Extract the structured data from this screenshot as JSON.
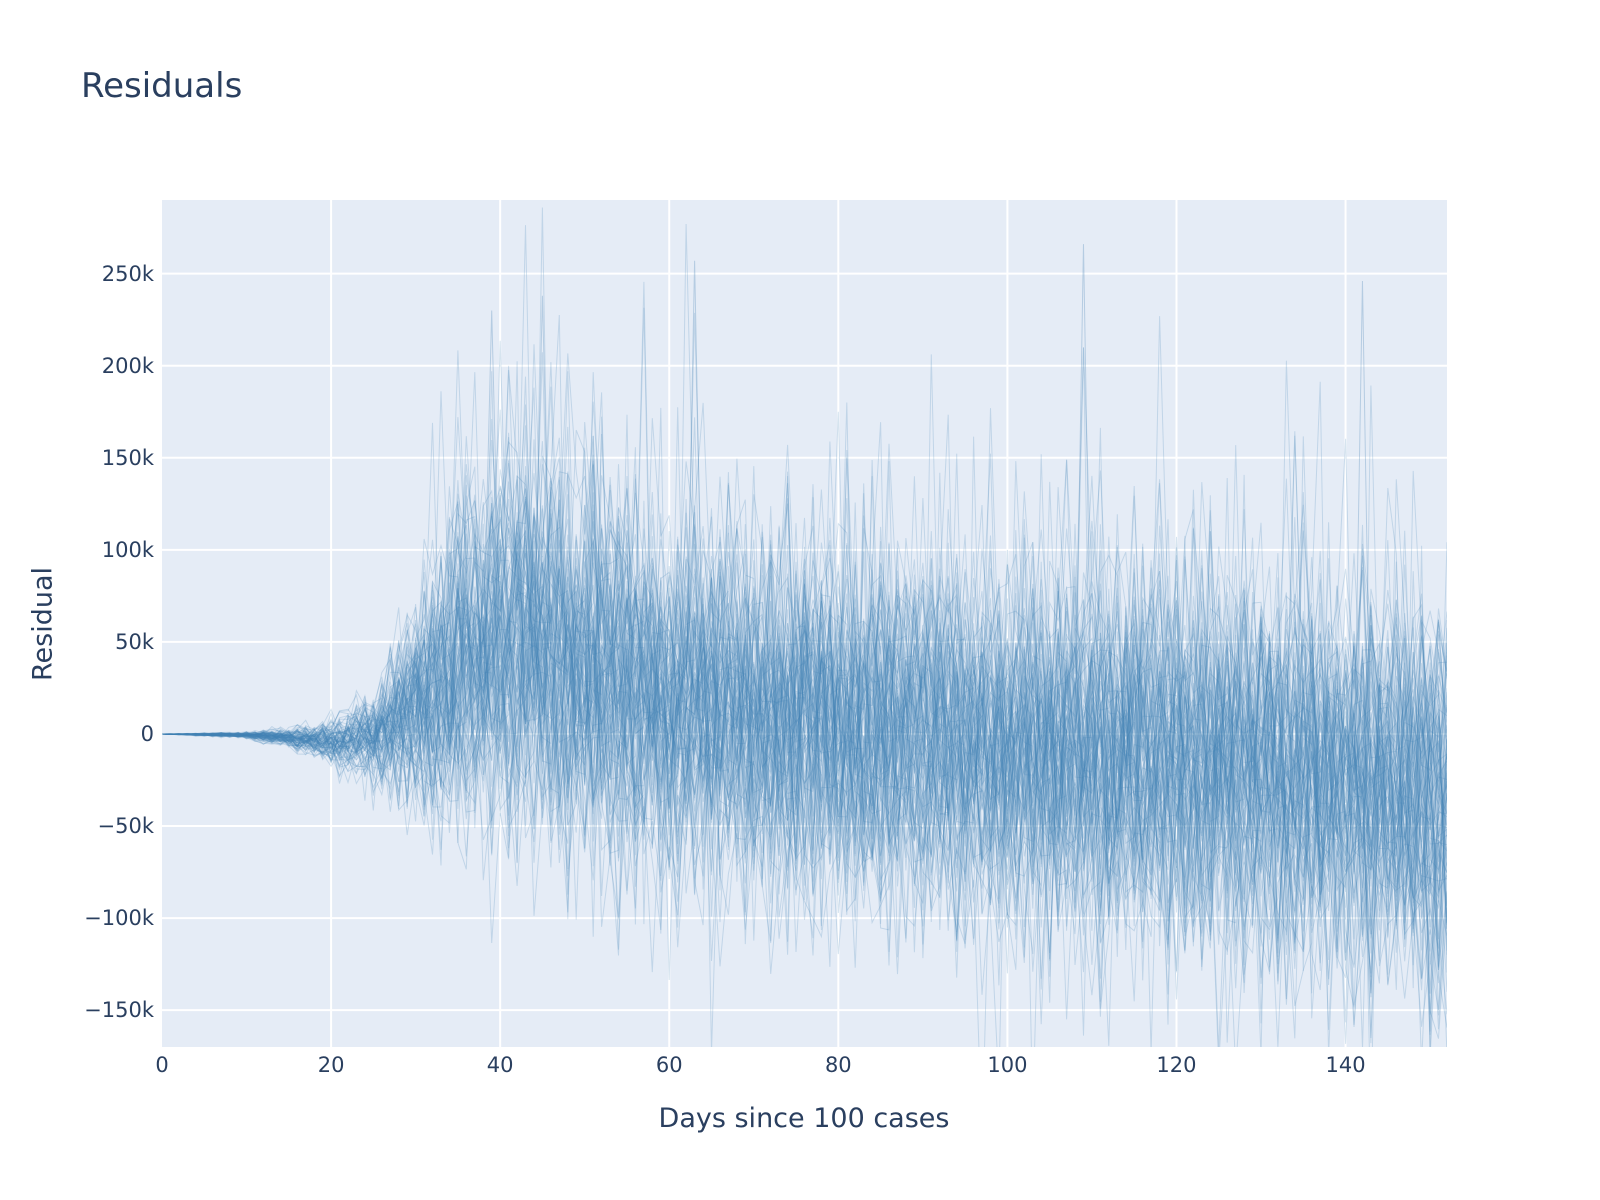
{
  "chart_data": {
    "type": "line",
    "title": "Residuals",
    "xlabel": "Days since 100 cases",
    "ylabel": "Residual",
    "xlim": [
      0,
      152
    ],
    "ylim": [
      -170000,
      290000
    ],
    "grid": true,
    "legend": "none",
    "x_ticks": [
      0,
      20,
      40,
      60,
      80,
      100,
      120,
      140
    ],
    "x_tick_labels": [
      "0",
      "20",
      "40",
      "60",
      "80",
      "100",
      "120",
      "140"
    ],
    "y_ticks": [
      -150000,
      -100000,
      -50000,
      0,
      50000,
      100000,
      150000,
      200000,
      250000
    ],
    "y_tick_labels": [
      "−150k",
      "−100k",
      "−50k",
      "0",
      "50k",
      "100k",
      "150k",
      "200k",
      "250k"
    ],
    "series_count": 100,
    "series_description": "Many overlapping semi-transparent residual traces (one per simulation), near zero for days 0-20, fanning out after day 25, centred around +40k at days 35-50 and drifting to about -30k by day 152.",
    "envelope": {
      "x": [
        0,
        10,
        15,
        20,
        25,
        30,
        35,
        40,
        45,
        50,
        60,
        70,
        80,
        90,
        100,
        110,
        120,
        130,
        140,
        152
      ],
      "center": [
        0,
        -500,
        -2000,
        -4000,
        -2000,
        15000,
        40000,
        45000,
        45000,
        35000,
        20000,
        10000,
        5000,
        0,
        -5000,
        -8000,
        -12000,
        -18000,
        -25000,
        -35000
      ],
      "spread": [
        0,
        800,
        2500,
        6000,
        12000,
        30000,
        45000,
        55000,
        55000,
        55000,
        52000,
        50000,
        50000,
        50000,
        50000,
        52000,
        52000,
        52000,
        55000,
        55000
      ]
    },
    "notable_peaks": [
      {
        "x": 63,
        "y": 257000
      },
      {
        "x": 109,
        "y": 266000
      },
      {
        "x": 142,
        "y": 246000
      },
      {
        "x": 45,
        "y": 238000
      },
      {
        "x": 39,
        "y": 230000
      }
    ],
    "notable_troughs": [
      {
        "x": 133,
        "y": -144000
      },
      {
        "x": 143,
        "y": -143000
      },
      {
        "x": 150,
        "y": -141000
      }
    ]
  },
  "colors": {
    "line": "#4682b4",
    "plot_bg": "#e5ecf6",
    "grid": "#ffffff",
    "text": "#2a3f5f"
  }
}
